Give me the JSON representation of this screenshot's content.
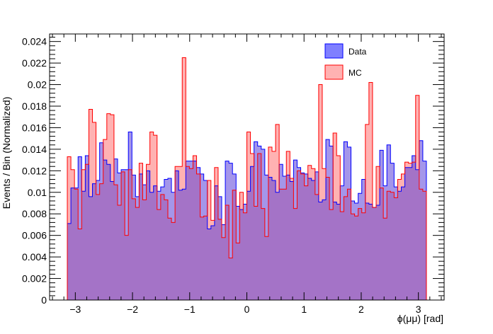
{
  "chart_data": {
    "type": "histogram",
    "title": "",
    "xlabel": "ϕ(μμ) [rad]",
    "ylabel": "Events / Bin (Normalized)",
    "xlim": [
      -3.45,
      3.45
    ],
    "ylim": [
      0,
      0.0247
    ],
    "bin_range": [
      -3.14,
      3.14
    ],
    "x_ticks": [
      -3,
      -2,
      -1,
      0,
      1,
      2,
      3
    ],
    "x_tick_labels": [
      "−3",
      "−2",
      "−1",
      "0",
      "1",
      "2",
      "3"
    ],
    "y_ticks": [
      0,
      0.002,
      0.004,
      0.006,
      0.008,
      0.01,
      0.012,
      0.014,
      0.016,
      0.018,
      0.02,
      0.022,
      0.024
    ],
    "y_tick_labels": [
      "0",
      "0.002",
      "0.004",
      "0.006",
      "0.008",
      "0.01",
      "0.012",
      "0.014",
      "0.016",
      "0.018",
      "0.02",
      "0.022",
      "0.024"
    ],
    "legend_position": "top-right",
    "grid": false,
    "series": [
      {
        "name": "Data",
        "fill": "#7f7fff",
        "line": "#0000ff",
        "values": [
          0.0071,
          0.0104,
          0.0104,
          0.0133,
          0.0101,
          0.0134,
          0.0096,
          0.0108,
          0.0111,
          0.0146,
          0.013,
          0.0126,
          0.011,
          0.0131,
          0.0118,
          0.0121,
          0.0121,
          0.0156,
          0.0116,
          0.0096,
          0.0117,
          0.0107,
          0.012,
          0.01,
          0.0106,
          0.0101,
          0.0105,
          0.0112,
          0.0113,
          0.01,
          0.012,
          0.0102,
          0.0103,
          0.0129,
          0.0129,
          0.0129,
          0.0123,
          0.0117,
          0.0111,
          0.0066,
          0.0069,
          0.0106,
          0.0096,
          0.007,
          0.0129,
          0.0127,
          0.0117,
          0.0087,
          0.0084,
          0.0089,
          0.0101,
          0.0124,
          0.0147,
          0.0143,
          0.014,
          0.0116,
          0.0114,
          0.0111,
          0.01,
          0.0126,
          0.0115,
          0.0116,
          0.011,
          0.013,
          0.0123,
          0.0118,
          0.0117,
          0.0113,
          0.0111,
          0.0119,
          0.0091,
          0.0093,
          0.0149,
          0.0143,
          0.0091,
          0.0089,
          0.0106,
          0.0147,
          0.0142,
          0.0092,
          0.009,
          0.0099,
          0.0112,
          0.009,
          0.0089,
          0.0086,
          0.0088,
          0.0139,
          0.0106,
          0.0144,
          0.0127,
          0.0105,
          0.0101,
          0.0105,
          0.0123,
          0.0123,
          0.0134,
          0.0121,
          0.0148,
          0.0129
        ],
        "bins": 100
      },
      {
        "name": "MC",
        "fill": "#ffb2b2",
        "line": "#ff0000",
        "values": [
          0.0133,
          0.0121,
          0.0103,
          0.0066,
          0.0121,
          0.0126,
          0.0177,
          0.0165,
          0.0098,
          0.0108,
          0.0149,
          0.0173,
          0.0172,
          0.0107,
          0.0088,
          0.0119,
          0.006,
          0.0121,
          0.0094,
          0.0086,
          0.0127,
          0.0093,
          0.0126,
          0.0156,
          0.0153,
          0.0084,
          0.0098,
          0.0093,
          0.0076,
          0.0072,
          0.0124,
          0.0124,
          0.0225,
          0.0124,
          0.0122,
          0.0134,
          0.0117,
          0.0077,
          0.0078,
          0.0111,
          0.0074,
          0.0123,
          0.0075,
          0.0058,
          0.0088,
          0.0039,
          0.0102,
          0.0053,
          0.01,
          0.0081,
          0.0156,
          0.0136,
          0.0087,
          0.0136,
          0.0085,
          0.0059,
          0.0142,
          0.0138,
          0.0163,
          0.0103,
          0.0103,
          0.0138,
          0.0113,
          0.0085,
          0.012,
          0.0117,
          0.0106,
          0.0125,
          0.0122,
          0.0098,
          0.02,
          0.0122,
          0.0114,
          0.0084,
          0.0155,
          0.0134,
          0.0082,
          0.0096,
          0.0103,
          0.008,
          0.0078,
          0.0085,
          0.0081,
          0.0163,
          0.0202,
          0.0086,
          0.0124,
          0.0104,
          0.0076,
          0.0101,
          0.01,
          0.0095,
          0.0112,
          0.0117,
          0.0128,
          0.0127,
          0.0128,
          0.019,
          0.0103,
          0.0101
        ],
        "bins": 100
      }
    ]
  }
}
